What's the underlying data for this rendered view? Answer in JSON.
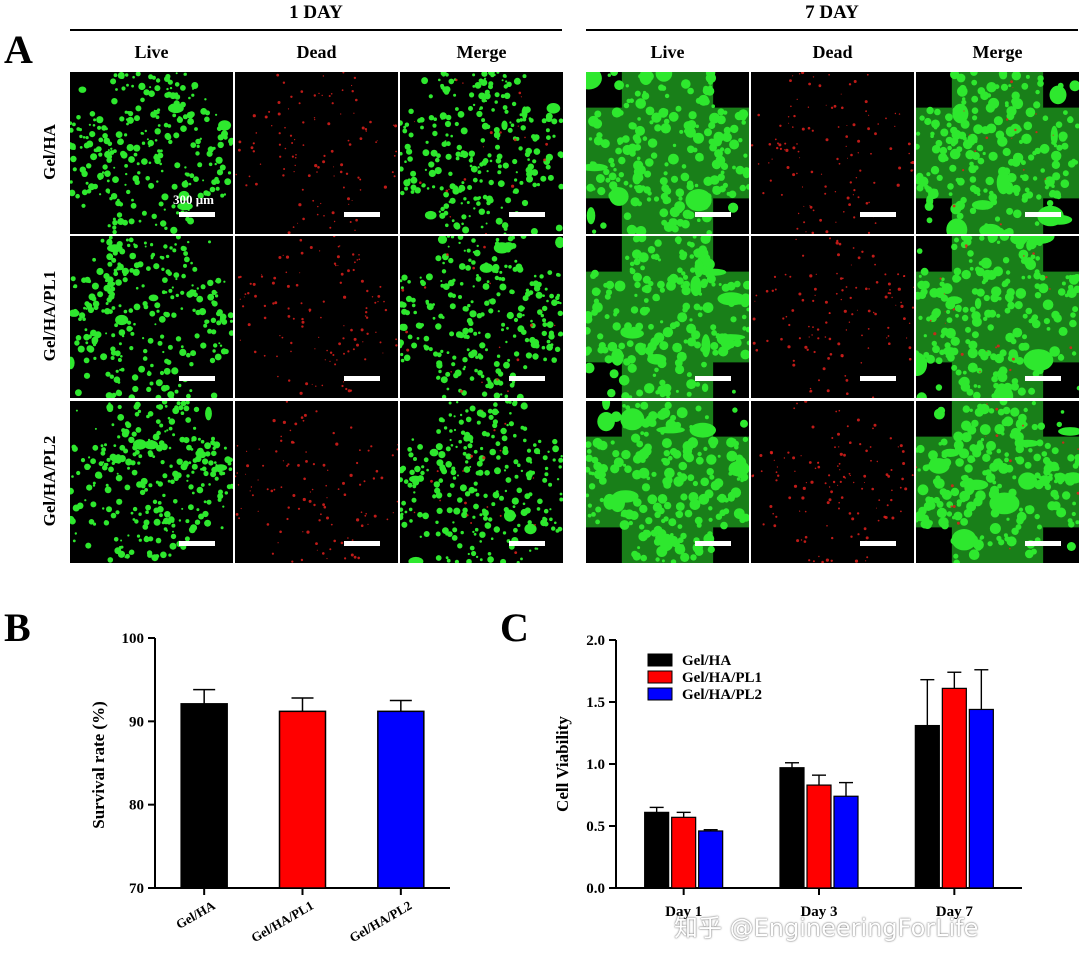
{
  "panels": {
    "a_letter": "A",
    "b_letter": "B",
    "c_letter": "C"
  },
  "micrographs": {
    "day_groups": [
      "1 DAY",
      "7 DAY"
    ],
    "columns": [
      "Live",
      "Dead",
      "Merge"
    ],
    "rows": [
      "Gel/HA",
      "Gel/HA/PL1",
      "Gel/HA/PL2"
    ],
    "scale_label": "300 μm",
    "colors": {
      "live": "#2ee82e",
      "dead": "#e0201c",
      "background": "#000000"
    }
  },
  "chart_data": [
    {
      "type": "bar",
      "categories": [
        "Gel/HA",
        "Gel/HA/PL1",
        "Gel/HA/PL2"
      ],
      "values": [
        92.1,
        91.2,
        91.2
      ],
      "errors": [
        1.7,
        1.6,
        1.3
      ],
      "colors": [
        "#000000",
        "#ff0000",
        "#0000ff"
      ],
      "xlabel": "",
      "ylabel": "Survival rate (%)",
      "ylim": [
        70,
        100
      ],
      "yticks": [
        70,
        80,
        90,
        100
      ],
      "grid": false
    },
    {
      "type": "bar",
      "categories": [
        "Day 1",
        "Day 3",
        "Day 7"
      ],
      "series": [
        {
          "name": "Gel/HA",
          "color": "#000000",
          "values": [
            0.61,
            0.97,
            1.31
          ],
          "errors": [
            0.04,
            0.04,
            0.37
          ]
        },
        {
          "name": "Gel/HA/PL1",
          "color": "#ff0000",
          "values": [
            0.57,
            0.83,
            1.61
          ],
          "errors": [
            0.04,
            0.08,
            0.13
          ]
        },
        {
          "name": "Gel/HA/PL2",
          "color": "#0000ff",
          "values": [
            0.46,
            0.74,
            1.44
          ],
          "errors": [
            0.01,
            0.11,
            0.32
          ]
        }
      ],
      "ylabel": "Cell Viability",
      "ylim": [
        0.0,
        2.0
      ],
      "yticks": [
        "0.0",
        "0.5",
        "1.0",
        "1.5",
        "2.0"
      ],
      "legend_position": "top-left",
      "grid": false
    }
  ],
  "watermark": "知乎 @EngineeringForLife"
}
